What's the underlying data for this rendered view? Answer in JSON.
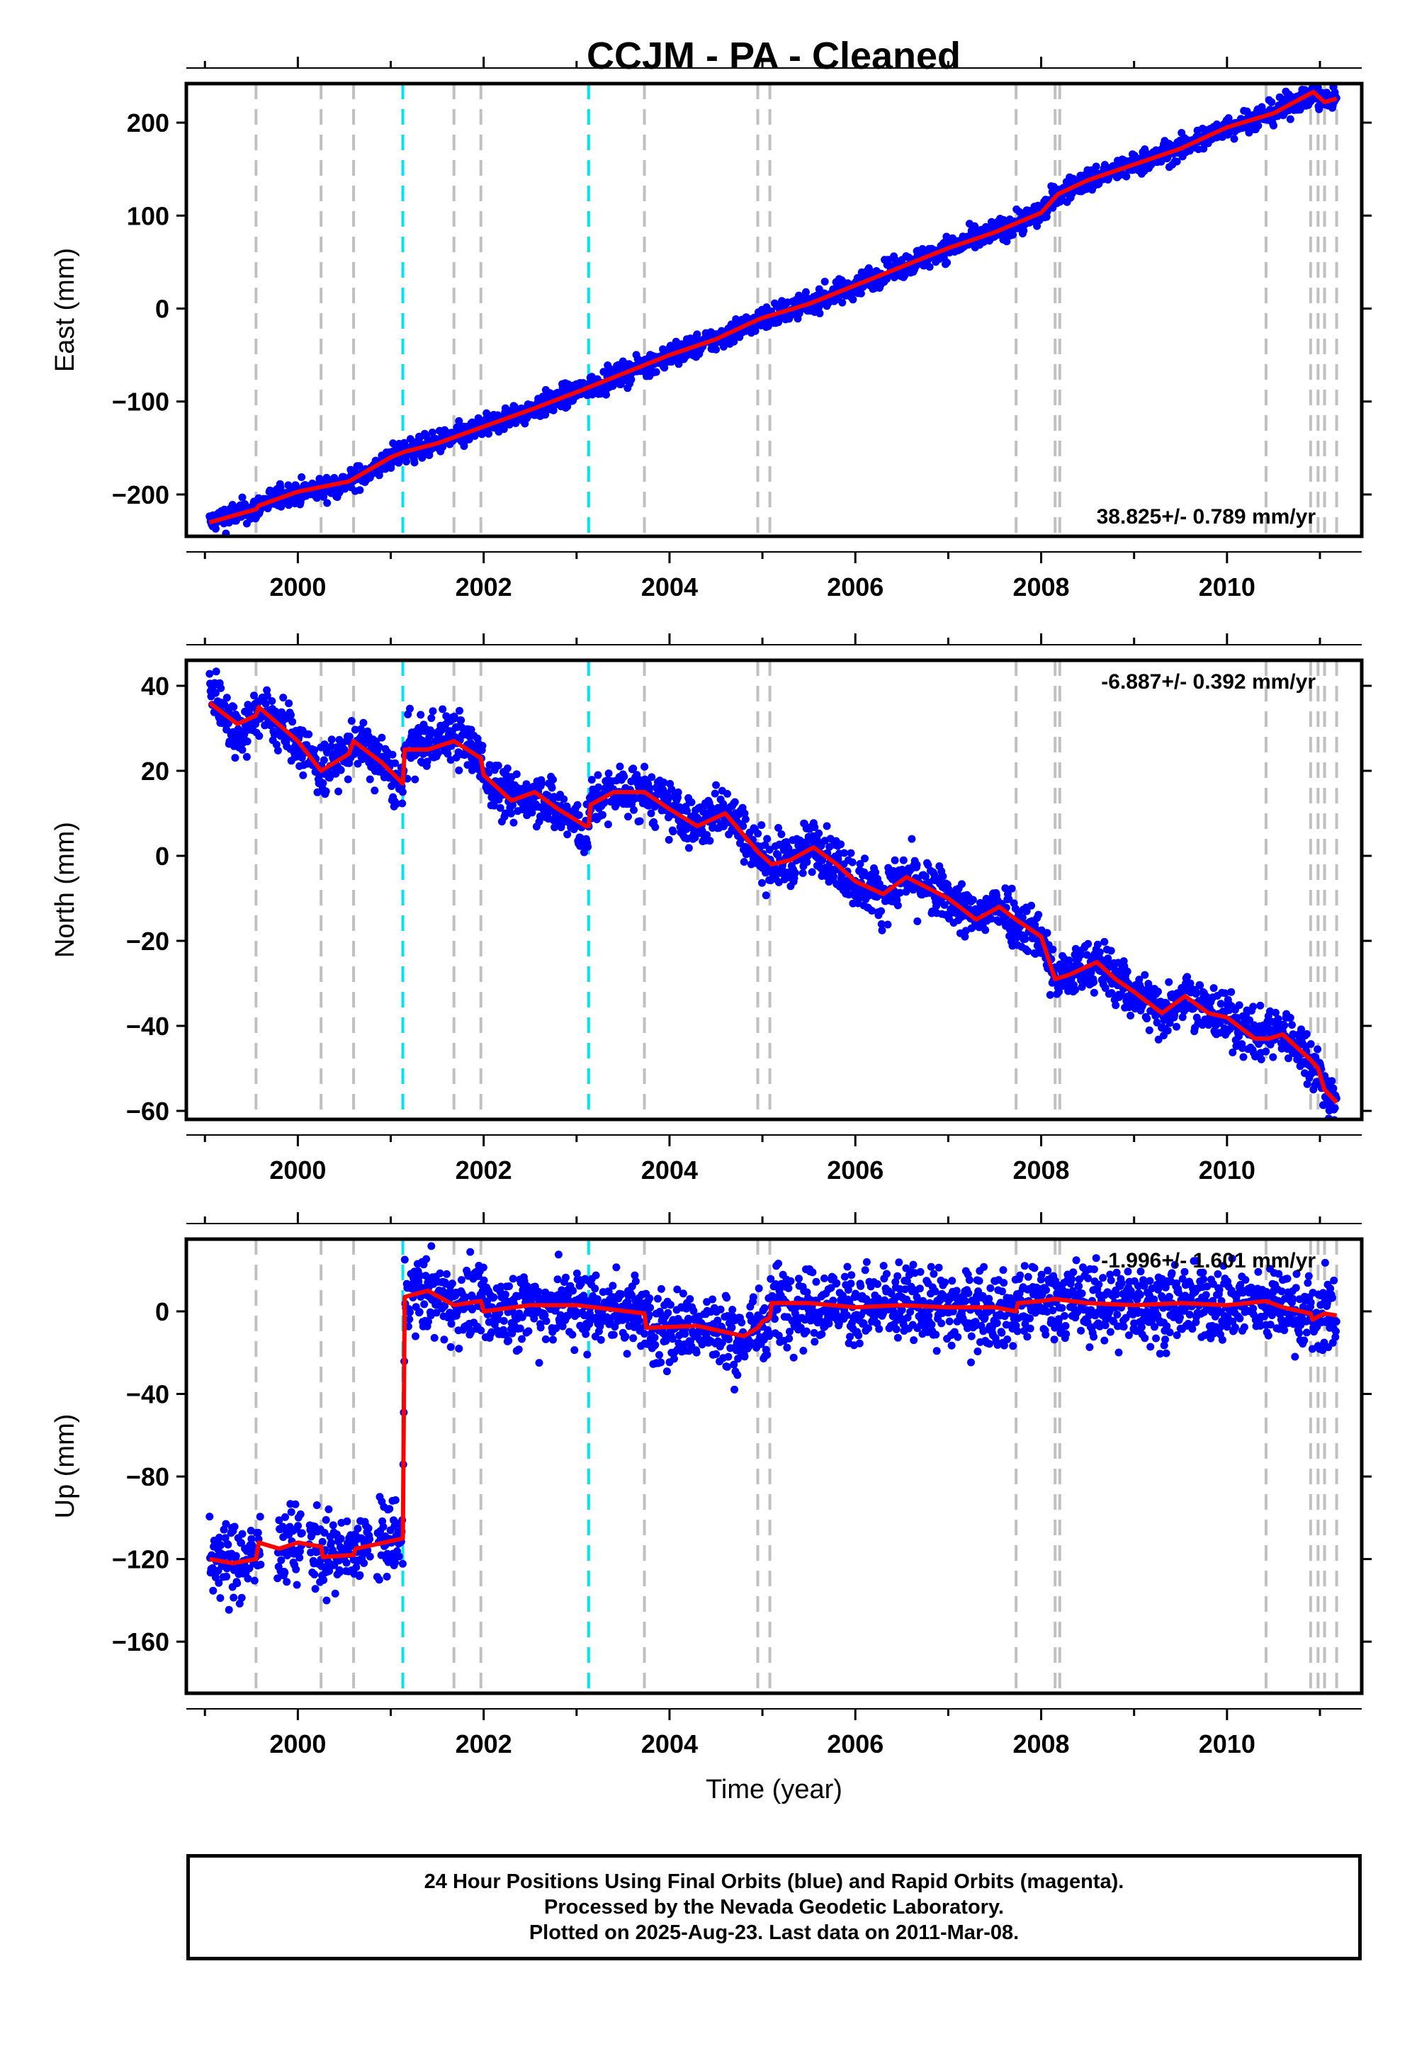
{
  "title": "CCJM  - PA - Cleaned",
  "colors": {
    "data": "#0000ff",
    "model": "#ff0000",
    "gap": "#c0c0c0",
    "event": "#00e5ee",
    "frame": "#000000"
  },
  "chart_data": [
    {
      "id": "east",
      "type": "scatter",
      "ylabel": "East (mm)",
      "xlabel": "",
      "ylim": [
        -245,
        242
      ],
      "yticks": [
        -200,
        -100,
        0,
        100,
        200
      ],
      "xlim": [
        1998.8,
        2011.45
      ],
      "xticks": [
        2000,
        2002,
        2004,
        2006,
        2008,
        2010
      ],
      "rate": "38.825+/- 0.789 mm/yr",
      "rate_position": "bottom-right",
      "grid": false,
      "model_series": {
        "name": "",
        "x": [
          1999.05,
          1999.55,
          1999.58,
          2000.0,
          2000.55,
          2001.0,
          2001.15,
          2001.5,
          2002.0,
          2002.5,
          2003.0,
          2003.5,
          2004.0,
          2004.5,
          2004.95,
          2005.0,
          2005.5,
          2006.0,
          2006.5,
          2007.0,
          2007.5,
          2008.0,
          2008.18,
          2008.5,
          2009.0,
          2009.5,
          2010.0,
          2010.5,
          2010.93,
          2011.05,
          2011.18
        ],
        "y": [
          -230,
          -216,
          -212,
          -197,
          -186,
          -160,
          -154,
          -145,
          -127,
          -109,
          -90,
          -70,
          -50,
          -33,
          -12,
          -10,
          5,
          25,
          45,
          65,
          82,
          103,
          123,
          138,
          155,
          172,
          195,
          210,
          233,
          222,
          226
        ]
      },
      "data_series": {
        "name": "",
        "x": [
          1999.05,
          1999.3,
          1999.55,
          1999.6,
          1999.9,
          2000.2,
          2000.5,
          2000.8,
          2001.0,
          2001.15,
          2001.5,
          2001.8,
          2002.0,
          2002.5,
          2003.0,
          2003.5,
          2004.0,
          2004.5,
          2004.9,
          2005.0,
          2005.5,
          2006.0,
          2006.5,
          2007.0,
          2007.5,
          2008.0,
          2008.18,
          2008.5,
          2009.0,
          2009.5,
          2010.0,
          2010.5,
          2010.93,
          2011.05,
          2011.18
        ],
        "y": [
          -230,
          -222,
          -216,
          -210,
          -200,
          -195,
          -188,
          -175,
          -160,
          -154,
          -145,
          -135,
          -127,
          -109,
          -90,
          -70,
          -50,
          -33,
          -15,
          -10,
          5,
          25,
          45,
          65,
          82,
          103,
          123,
          138,
          155,
          172,
          195,
          210,
          233,
          222,
          226
        ],
        "spread": 6
      },
      "gap_lines": [
        1999.55,
        2000.25,
        2000.6,
        2001.68,
        2001.97,
        2003.73,
        2004.95,
        2005.08,
        2007.73,
        2008.15,
        2008.2,
        2010.42,
        2010.9,
        2010.98,
        2011.05,
        2011.18
      ],
      "event_lines": [
        2001.13,
        2003.13
      ]
    },
    {
      "id": "north",
      "type": "scatter",
      "ylabel": "North (mm)",
      "xlabel": "",
      "ylim": [
        -62,
        46
      ],
      "yticks": [
        -60,
        -40,
        -20,
        0,
        20,
        40
      ],
      "xlim": [
        1998.8,
        2011.45
      ],
      "xticks": [
        2000,
        2002,
        2004,
        2006,
        2008,
        2010
      ],
      "rate": "-6.887+/- 0.392 mm/yr",
      "rate_position": "top-right",
      "grid": false,
      "model_series": {
        "name": "",
        "x": [
          1999.05,
          1999.35,
          1999.55,
          1999.58,
          2000.0,
          2000.25,
          2000.55,
          2000.6,
          2000.9,
          2001.13,
          2001.15,
          2001.4,
          2001.68,
          2001.97,
          2002.0,
          2002.3,
          2002.55,
          2002.8,
          2003.1,
          2003.13,
          2003.15,
          2003.4,
          2003.73,
          2004.0,
          2004.3,
          2004.6,
          2004.95,
          2005.1,
          2005.3,
          2005.55,
          2005.8,
          2006.0,
          2006.3,
          2006.55,
          2007.0,
          2007.3,
          2007.55,
          2007.73,
          2008.0,
          2008.15,
          2008.3,
          2008.6,
          2008.8,
          2009.0,
          2009.3,
          2009.55,
          2009.8,
          2010.0,
          2010.3,
          2010.45,
          2010.6,
          2010.9,
          2010.98,
          2011.05,
          2011.18
        ],
        "y": [
          36,
          31,
          33,
          35,
          27,
          20,
          24,
          27,
          22,
          17,
          25,
          25,
          27,
          23,
          19,
          13,
          15,
          11,
          7,
          7,
          12,
          15,
          15,
          11,
          7,
          10,
          1,
          -2,
          -1,
          2,
          -2,
          -6,
          -9,
          -5,
          -10,
          -15,
          -12,
          -15,
          -19,
          -29,
          -28,
          -25,
          -29,
          -32,
          -37,
          -33,
          -37,
          -38,
          -43,
          -43,
          -42,
          -48,
          -50,
          -55,
          -58
        ],
        "color": "#ff0000"
      },
      "data_series": {
        "name": "",
        "x": [
          1999.05,
          1999.35,
          1999.55,
          1999.58,
          2000.0,
          2000.25,
          2000.55,
          2000.6,
          2000.9,
          2001.13,
          2001.15,
          2001.4,
          2001.68,
          2001.97,
          2002.0,
          2002.3,
          2002.55,
          2002.8,
          2003.1,
          2003.13,
          2003.15,
          2003.4,
          2003.73,
          2004.0,
          2004.3,
          2004.6,
          2004.95,
          2005.1,
          2005.3,
          2005.55,
          2005.8,
          2006.0,
          2006.3,
          2006.55,
          2007.0,
          2007.3,
          2007.55,
          2007.73,
          2008.0,
          2008.15,
          2008.3,
          2008.6,
          2008.8,
          2009.0,
          2009.3,
          2009.55,
          2009.8,
          2010.0,
          2010.3,
          2010.45,
          2010.6,
          2010.9,
          2010.98,
          2011.05,
          2011.18
        ],
        "y": [
          40,
          29,
          33,
          35,
          27,
          20,
          24,
          27,
          22,
          15,
          25,
          27,
          29,
          23,
          19,
          13,
          15,
          11,
          5,
          7,
          12,
          15,
          15,
          11,
          7,
          12,
          1,
          -2,
          -1,
          3,
          -2,
          -6,
          -9,
          -5,
          -10,
          -15,
          -11,
          -15,
          -19,
          -29,
          -28,
          -25,
          -29,
          -32,
          -37,
          -32,
          -37,
          -38,
          -43,
          -41,
          -41,
          -48,
          -50,
          -55,
          -59
        ],
        "spread": 3
      },
      "gap_lines": [
        1999.55,
        2000.25,
        2000.6,
        2001.68,
        2001.97,
        2003.73,
        2004.95,
        2005.08,
        2007.73,
        2008.15,
        2008.2,
        2010.42,
        2010.9,
        2010.98,
        2011.05,
        2011.18
      ],
      "event_lines": [
        2001.13,
        2003.13
      ]
    },
    {
      "id": "up",
      "type": "scatter",
      "ylabel": "Up (mm)",
      "xlabel": "Time (year)",
      "ylim": [
        -185,
        35
      ],
      "yticks": [
        -160,
        -120,
        -80,
        -40,
        0
      ],
      "xlim": [
        1998.8,
        2011.45
      ],
      "xticks": [
        2000,
        2002,
        2004,
        2006,
        2008,
        2010
      ],
      "rate": "-1.996+/- 1.601 mm/yr",
      "rate_position": "top-right",
      "grid": false,
      "model_series": {
        "name": "",
        "x": [
          1999.05,
          1999.3,
          1999.55,
          1999.58,
          1999.8,
          2000.0,
          2000.25,
          2000.27,
          2000.6,
          2000.62,
          2001.13,
          2001.15,
          2001.4,
          2001.68,
          2001.97,
          2002.0,
          2002.5,
          2003.0,
          2003.73,
          2003.75,
          2004.3,
          2004.8,
          2004.95,
          2005.0,
          2005.08,
          2005.1,
          2005.5,
          2006.0,
          2006.5,
          2007.0,
          2007.5,
          2007.73,
          2007.75,
          2008.0,
          2008.15,
          2008.5,
          2009.0,
          2009.5,
          2010.0,
          2010.42,
          2010.6,
          2010.9,
          2010.92,
          2011.05,
          2011.18
        ],
        "y": [
          -120,
          -122,
          -120,
          -112,
          -115,
          -112,
          -114,
          -119,
          -118,
          -115,
          -110,
          7,
          10,
          3,
          5,
          0,
          3,
          3,
          -1,
          -8,
          -7,
          -12,
          -8,
          -5,
          -3,
          4,
          4,
          2,
          3,
          2,
          2,
          0,
          4,
          5,
          6,
          4,
          3,
          4,
          3,
          5,
          2,
          -1,
          -4,
          -1,
          -2
        ]
      },
      "data_series": {
        "name": "",
        "x": [
          1999.05,
          1999.3,
          1999.55,
          1999.58,
          1999.8,
          2000.0,
          2000.25,
          2000.27,
          2000.6,
          2000.62,
          2001.13,
          2001.15,
          2001.4,
          2001.68,
          2001.97,
          2002.0,
          2002.5,
          2003.0,
          2003.73,
          2003.75,
          2004.3,
          2004.8,
          2004.95,
          2005.0,
          2005.08,
          2005.1,
          2005.5,
          2006.0,
          2006.5,
          2007.0,
          2007.5,
          2007.73,
          2007.75,
          2008.0,
          2008.15,
          2008.5,
          2009.0,
          2009.5,
          2010.0,
          2010.42,
          2010.6,
          2010.9,
          2010.92,
          2011.05,
          2011.18
        ],
        "y": [
          -120,
          -122,
          -120,
          -112,
          -115,
          -112,
          -114,
          -119,
          -118,
          -115,
          -110,
          7,
          10,
          3,
          5,
          0,
          3,
          3,
          -1,
          -8,
          -7,
          -14,
          -8,
          -5,
          -3,
          4,
          4,
          2,
          3,
          2,
          2,
          0,
          4,
          5,
          6,
          4,
          3,
          4,
          3,
          5,
          2,
          -1,
          -4,
          -1,
          -2
        ],
        "spread": 9
      },
      "gap_lines": [
        1999.55,
        2000.25,
        2000.6,
        2001.68,
        2001.97,
        2003.73,
        2004.95,
        2005.08,
        2007.73,
        2008.15,
        2008.2,
        2010.42,
        2010.9,
        2010.98,
        2011.05,
        2011.18
      ],
      "event_lines": [
        2001.13,
        2003.13
      ]
    }
  ],
  "footer": {
    "line1": "24 Hour Positions Using Final Orbits (blue) and Rapid Orbits (magenta).",
    "line2": "Processed by the Nevada Geodetic Laboratory.",
    "line3": "Plotted on 2025-Aug-23. Last data on 2011-Mar-08."
  }
}
